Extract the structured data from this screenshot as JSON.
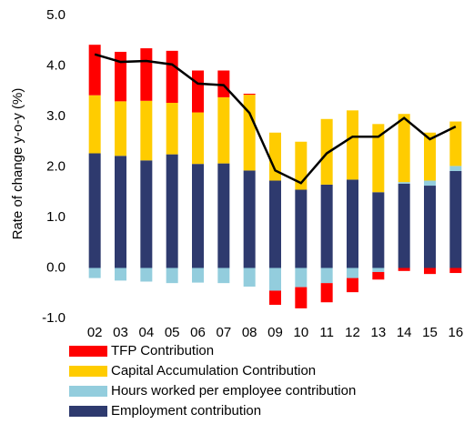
{
  "chart_data": {
    "type": "stacked-bar-line",
    "y_label": "Rate of change y-o-y (%)",
    "categories": [
      "02",
      "03",
      "04",
      "05",
      "06",
      "07",
      "08",
      "09",
      "10",
      "11",
      "12",
      "13",
      "14",
      "15",
      "16"
    ],
    "ylim": [
      -1,
      5
    ],
    "yticks": [
      {
        "value": -1,
        "label": "-1.0"
      },
      {
        "value": 0,
        "label": "0.0"
      },
      {
        "value": 1,
        "label": "1.0"
      },
      {
        "value": 2,
        "label": "2.0"
      },
      {
        "value": 3,
        "label": "3.0"
      },
      {
        "value": 4,
        "label": "4.0"
      },
      {
        "value": 5,
        "label": "5.0"
      }
    ],
    "series": [
      {
        "name": "Employment contribution",
        "color": "#2e3a6e",
        "values": [
          2.27,
          2.22,
          2.13,
          2.25,
          2.06,
          2.07,
          1.93,
          1.73,
          1.55,
          1.65,
          1.75,
          1.5,
          1.67,
          1.63,
          1.92
        ]
      },
      {
        "name": "Hours worked per employee contribution",
        "color": "#93cddd",
        "values": [
          -0.2,
          -0.25,
          -0.27,
          -0.3,
          -0.29,
          -0.3,
          -0.37,
          -0.45,
          -0.38,
          -0.3,
          -0.2,
          -0.08,
          0.03,
          0.1,
          0.1
        ]
      },
      {
        "name": "Capital Accumulation Contribution",
        "color": "#ffcc00",
        "values": [
          1.15,
          1.08,
          1.18,
          1.02,
          1.02,
          1.31,
          1.5,
          0.95,
          0.95,
          1.3,
          1.37,
          1.35,
          1.35,
          0.95,
          0.88
        ]
      },
      {
        "name": "TFP Contribution",
        "color": "#ff0000",
        "values": [
          1.0,
          0.98,
          1.04,
          1.03,
          0.83,
          0.53,
          0.02,
          -0.28,
          -0.42,
          -0.38,
          -0.28,
          -0.15,
          -0.06,
          -0.12,
          -0.1
        ]
      }
    ],
    "line": {
      "color": "#000000",
      "values": [
        4.23,
        4.08,
        4.1,
        4.03,
        3.65,
        3.62,
        3.07,
        1.93,
        1.68,
        2.27,
        2.6,
        2.6,
        2.97,
        2.55,
        2.8
      ]
    }
  }
}
